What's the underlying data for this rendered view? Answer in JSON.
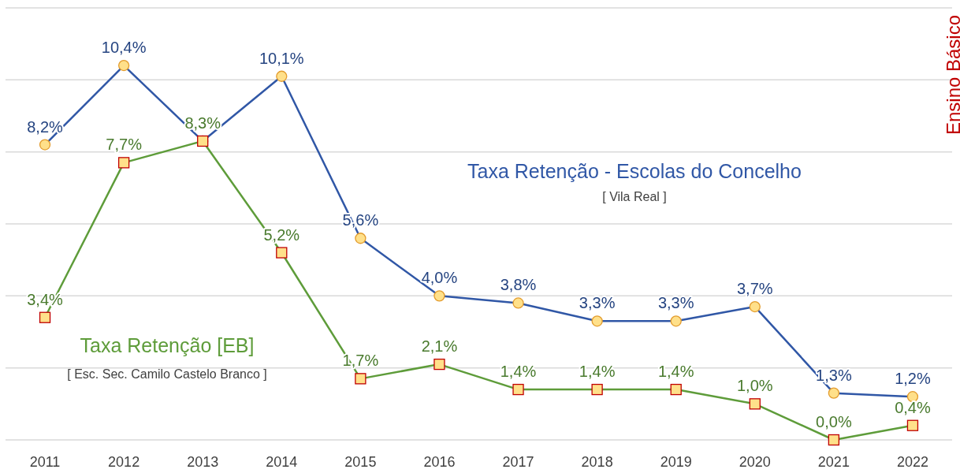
{
  "chart_data": {
    "type": "line",
    "categories": [
      "2011",
      "2012",
      "2013",
      "2014",
      "2015",
      "2016",
      "2017",
      "2018",
      "2019",
      "2020",
      "2021",
      "2022"
    ],
    "ylim": [
      0,
      12
    ],
    "yticks": [
      {
        "value": 0,
        "label": null
      },
      {
        "value": 2,
        "label": null
      },
      {
        "value": 4,
        "label": null
      },
      {
        "value": 6,
        "label": null
      },
      {
        "value": 8,
        "label": null
      },
      {
        "value": 10,
        "label": null
      },
      {
        "value": 12,
        "label": null
      }
    ],
    "tick_labels": "x",
    "grid": "y",
    "line_style": "solid",
    "series": [
      {
        "name": "Taxa Retenção - Escolas do Concelho",
        "color": "#3057a6",
        "marker": "circle",
        "values": [
          8.2,
          10.4,
          8.3,
          10.1,
          5.6,
          4.0,
          3.8,
          3.3,
          3.3,
          3.7,
          1.3,
          1.2
        ],
        "value_labels": [
          "8,2%",
          "10,4%",
          null,
          "10,1%",
          "5,6%",
          "4,0%",
          "3,8%",
          "3,3%",
          "3,3%",
          "3,7%",
          "1,3%",
          "1,2%"
        ]
      },
      {
        "name": "Taxa Retenção [EB]",
        "color": "#5e9c3a",
        "marker": "square",
        "values": [
          3.4,
          7.7,
          8.3,
          5.2,
          1.7,
          2.1,
          1.4,
          1.4,
          1.4,
          1.0,
          0.0,
          0.4
        ],
        "value_labels": [
          "3,4%",
          "7,7%",
          "8,3%",
          "5,2%",
          "1,7%",
          "2,1%",
          "1,4%",
          "1,4%",
          "1,4%",
          "1,0%",
          "0,0%",
          "0,4%"
        ]
      }
    ],
    "annotations": [
      "[ Vila Real ]",
      "[ Esc. Sec. Camilo Castelo Branco ]",
      "Ensino Básico"
    ]
  }
}
